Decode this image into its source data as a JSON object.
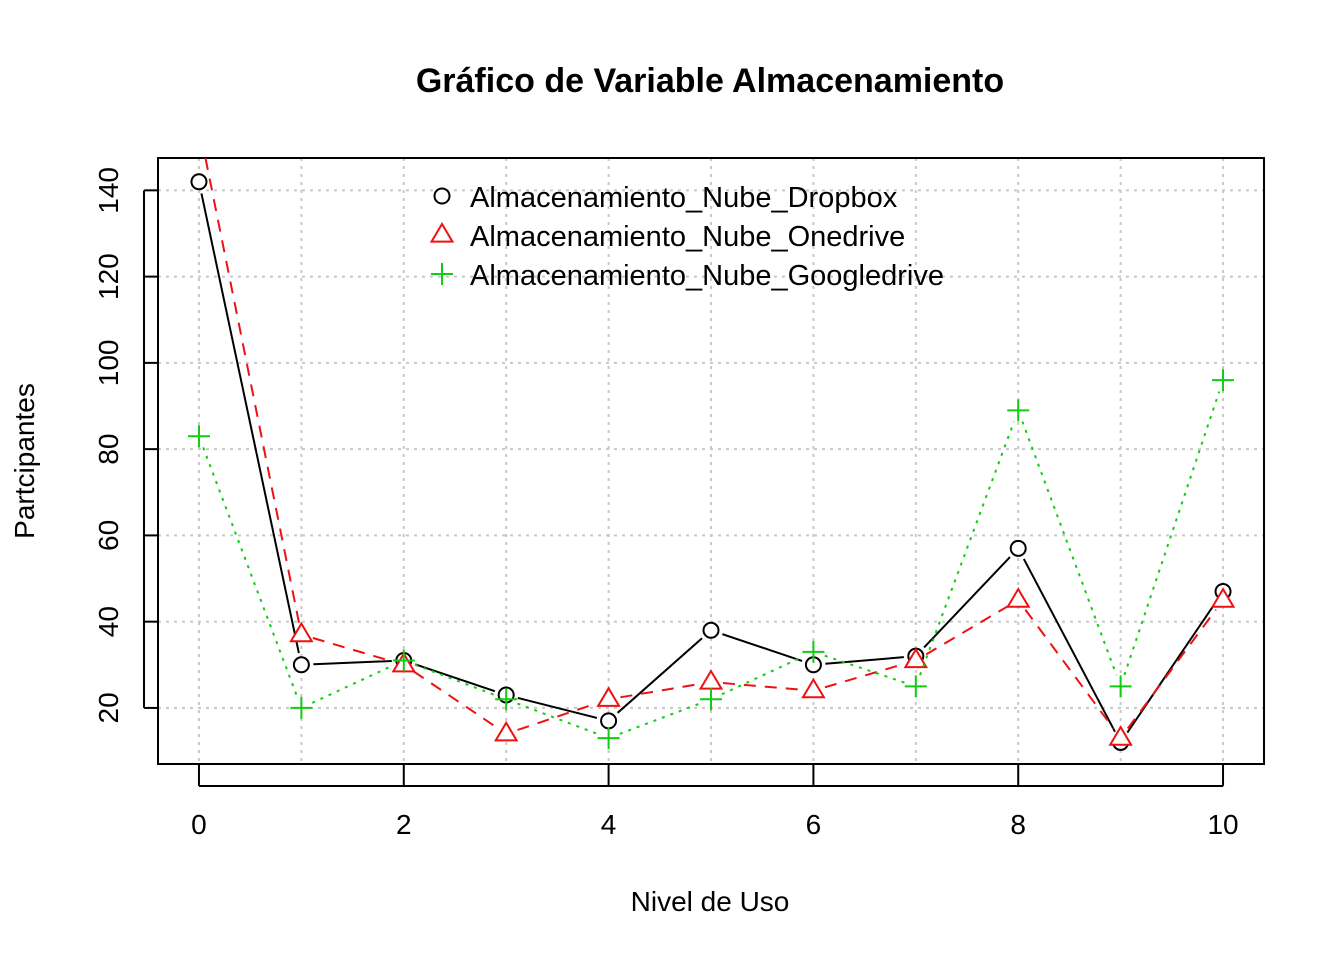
{
  "chart_data": {
    "type": "line",
    "title": "Gráfico de Variable Almacenamiento",
    "xlabel": "Nivel de Uso",
    "ylabel": "Partcipantes",
    "x": [
      0,
      1,
      2,
      3,
      4,
      5,
      6,
      7,
      8,
      9,
      10
    ],
    "xticks": [
      "0",
      "2",
      "4",
      "6",
      "8",
      "10"
    ],
    "yticks": [
      "20",
      "40",
      "60",
      "80",
      "100",
      "120",
      "140"
    ],
    "xlim": [
      -0.4,
      10.4
    ],
    "ylim": [
      7,
      147.5
    ],
    "grid": true,
    "legend_position": "top-center",
    "series": [
      {
        "name": "Almacenamiento_Nube_Dropbox",
        "values": [
          142,
          30,
          31,
          23,
          17,
          38,
          30,
          32,
          57,
          12,
          47
        ],
        "color": "#000000",
        "marker": "circle",
        "line": "solid"
      },
      {
        "name": "Almacenamiento_Nube_Onedrive",
        "values": [
          155,
          37,
          30,
          14,
          22,
          26,
          24,
          31,
          45,
          13,
          45
        ],
        "color": "#ee1111",
        "marker": "triangle",
        "line": "dashed"
      },
      {
        "name": "Almacenamiento_Nube_Googledrive",
        "values": [
          83,
          20,
          31,
          22,
          13,
          22,
          33,
          25,
          89,
          25,
          96
        ],
        "color": "#11cc11",
        "marker": "plus",
        "line": "dotted"
      }
    ]
  }
}
